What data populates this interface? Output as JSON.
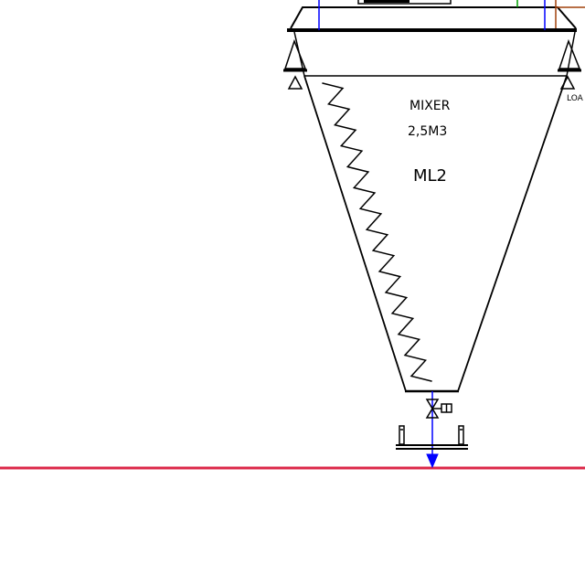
{
  "diagram": {
    "equipment": {
      "type_label": "MIXER",
      "capacity_label": "2,5M3",
      "tag_label": "ML2"
    },
    "side_label": "LOA",
    "colors": {
      "outline": "#000000",
      "pipe_blue": "#0000ff",
      "pipe_green": "#00a000",
      "pipe_brown": "#a0400a",
      "floor_line": "#dc2848"
    }
  }
}
